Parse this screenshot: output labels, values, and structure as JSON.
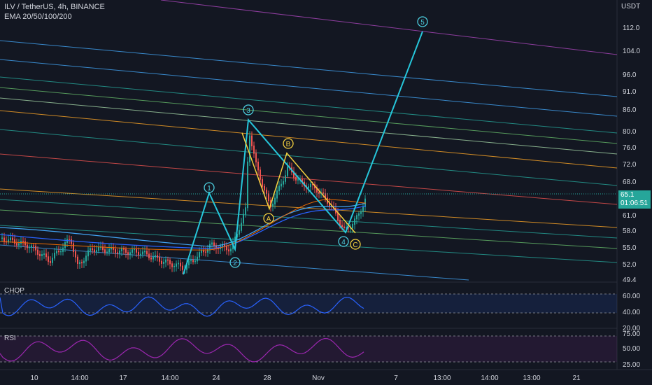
{
  "header": {
    "symbol_line": "ILV / TetherUS, 4h, BINANCE",
    "indicator_line": "EMA 20/50/100/200"
  },
  "currency_label": "USDT",
  "last_price": {
    "value": "65.1",
    "countdown": "01:06:51",
    "color": "#26a69a"
  },
  "panes": {
    "chop_label": "CHOP",
    "rsi_label": "RSI"
  },
  "chart_data": [
    {
      "type": "line",
      "name": "price_pane",
      "y_scale": "log",
      "y_ticks": [
        "112.0",
        "104.0",
        "96.0",
        "91.0",
        "86.0",
        "80.0",
        "76.0",
        "72.0",
        "68.0",
        "61.0",
        "58.0",
        "55.0",
        "52.0",
        "49.4"
      ],
      "x_ticks": [
        "10",
        "14:00",
        "17",
        "14:00",
        "24",
        "28",
        "Nov",
        "7",
        "13:00",
        "14:00",
        "13:00",
        "21"
      ],
      "wave_labels": [
        {
          "text": "1",
          "color": "#4dd0e1"
        },
        {
          "text": "2",
          "color": "#4dd0e1"
        },
        {
          "text": "3",
          "color": "#4dd0e1"
        },
        {
          "text": "4",
          "color": "#4dd0e1"
        },
        {
          "text": "5",
          "color": "#4dd0e1"
        },
        {
          "text": "A",
          "color": "#f4d03f"
        },
        {
          "text": "B",
          "color": "#f4d03f"
        },
        {
          "text": "C",
          "color": "#f4d03f"
        }
      ],
      "impulse_wave_price": [
        {
          "label": "start",
          "price": 50.2
        },
        {
          "label": "1",
          "price": 65.5
        },
        {
          "label": "2",
          "price": 54.6
        },
        {
          "label": "3",
          "price": 83.0
        },
        {
          "label": "4",
          "price": 57.6
        },
        {
          "label": "5",
          "price": 110.5
        }
      ],
      "correction_wave_price": [
        {
          "label": "start",
          "price": 79.5
        },
        {
          "label": "A",
          "price": 62.2
        },
        {
          "label": "B",
          "price": 74.5
        },
        {
          "label": "C",
          "price": 57.5
        }
      ],
      "colors": {
        "up": "#26a69a",
        "down": "#ef5350",
        "impulse": "#26c6da",
        "correction": "#f4d03f",
        "fib_lines": [
          "#2962ff",
          "#42a5f5",
          "#26a69a",
          "#66bb6a",
          "#a5d6a7",
          "#ffa726",
          "#ef5350",
          "#ab47bc"
        ]
      }
    },
    {
      "type": "line",
      "name": "CHOP",
      "y_ticks": [
        "60.00",
        "40.00",
        "20.00"
      ],
      "levels": [
        61.8,
        38.2
      ],
      "color": "#2962ff"
    },
    {
      "type": "line",
      "name": "RSI",
      "y_ticks": [
        "75.00",
        "50.00",
        "25.00"
      ],
      "levels": [
        70,
        30
      ],
      "color": "#9c27b0"
    }
  ]
}
